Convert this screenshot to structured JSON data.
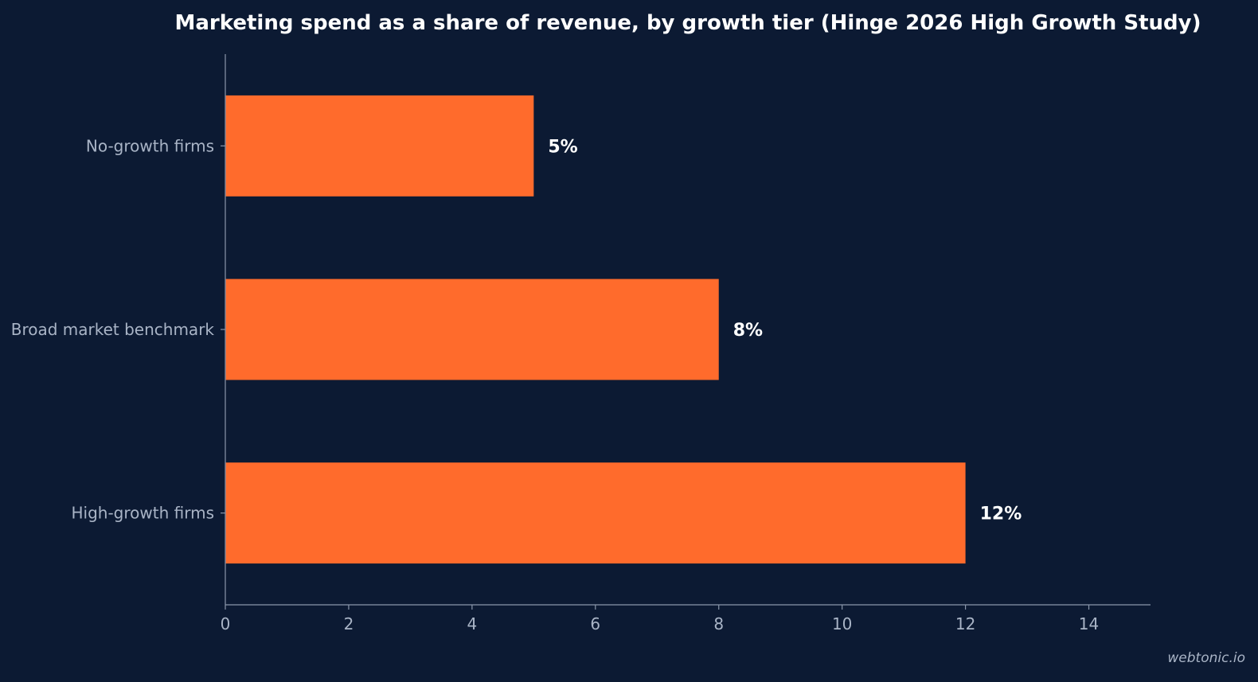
{
  "chart_data": {
    "type": "bar",
    "orientation": "horizontal",
    "title": "Marketing spend as a share of revenue, by growth tier (Hinge 2026 High Growth Study)",
    "categories": [
      "No-growth firms",
      "Broad market benchmark",
      "High-growth firms"
    ],
    "values": [
      5,
      8,
      12
    ],
    "data_labels": [
      "5%",
      "8%",
      "12%"
    ],
    "xlabel": "",
    "ylabel": "",
    "xlim": [
      0,
      15
    ],
    "x_ticks": [
      0,
      2,
      4,
      6,
      8,
      10,
      12,
      14
    ],
    "grid": false,
    "legend": "none",
    "colors": {
      "background": "#0c1a33",
      "bar": "#ff6b2c",
      "axis": "#8a97ab",
      "tick_text": "#a9b4c6",
      "data_label": "#ffffff"
    }
  },
  "watermark": "webtonic.io"
}
